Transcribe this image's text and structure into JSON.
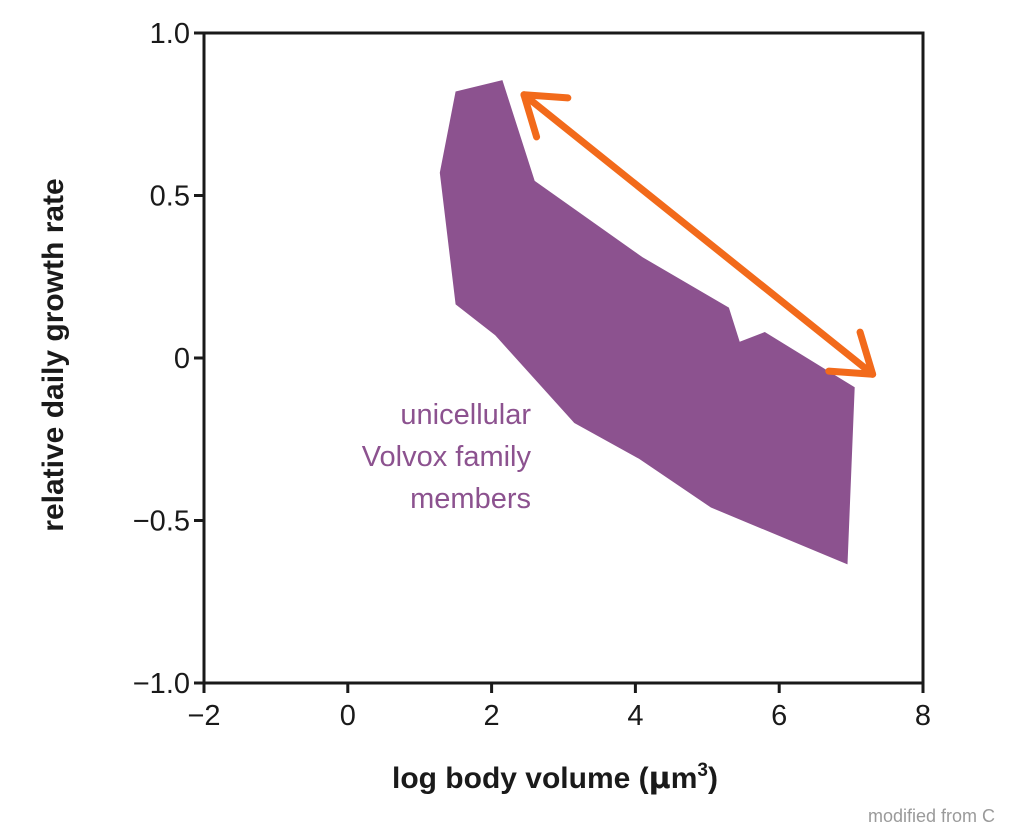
{
  "chart_data": {
    "type": "area",
    "xlabel": "log body volume (μm³)",
    "xlabel_parts": {
      "main": "log body volume (",
      "mu": "μ",
      "unit": "m",
      "exp": "3",
      "close": ")"
    },
    "ylabel": "relative daily growth rate",
    "xlim": [
      -2,
      8
    ],
    "ylim": [
      -1.0,
      1.0
    ],
    "x_ticks": [
      -2,
      0,
      2,
      4,
      6,
      8
    ],
    "x_tick_labels": [
      "−2",
      "0",
      "2",
      "4",
      "6",
      "8"
    ],
    "y_ticks": [
      -1.0,
      -0.5,
      0,
      0.5,
      1.0
    ],
    "y_tick_labels": [
      "−1.0",
      "−0.5",
      "0",
      "0.5",
      "1.0"
    ],
    "grid": false,
    "series": [
      {
        "name": "unicellular Volvox family members",
        "label_lines": [
          "unicellular",
          "Volvox family",
          "members"
        ],
        "color": "#8c528f",
        "polygon": [
          {
            "x": 1.5,
            "y": 0.82
          },
          {
            "x": 2.15,
            "y": 0.855
          },
          {
            "x": 2.6,
            "y": 0.545
          },
          {
            "x": 4.1,
            "y": 0.31
          },
          {
            "x": 5.3,
            "y": 0.155
          },
          {
            "x": 5.45,
            "y": 0.05
          },
          {
            "x": 5.8,
            "y": 0.08
          },
          {
            "x": 7.05,
            "y": -0.09
          },
          {
            "x": 6.95,
            "y": -0.635
          },
          {
            "x": 5.05,
            "y": -0.46
          },
          {
            "x": 4.05,
            "y": -0.31
          },
          {
            "x": 3.15,
            "y": -0.2
          },
          {
            "x": 2.05,
            "y": 0.07
          },
          {
            "x": 1.5,
            "y": 0.165
          },
          {
            "x": 1.28,
            "y": 0.57
          }
        ]
      }
    ],
    "annotations": [
      {
        "type": "double-arrow",
        "color": "#f26a1b",
        "from": {
          "x": 2.45,
          "y": 0.81
        },
        "to": {
          "x": 7.3,
          "y": -0.05
        }
      }
    ]
  },
  "credit_text": "modified from C"
}
